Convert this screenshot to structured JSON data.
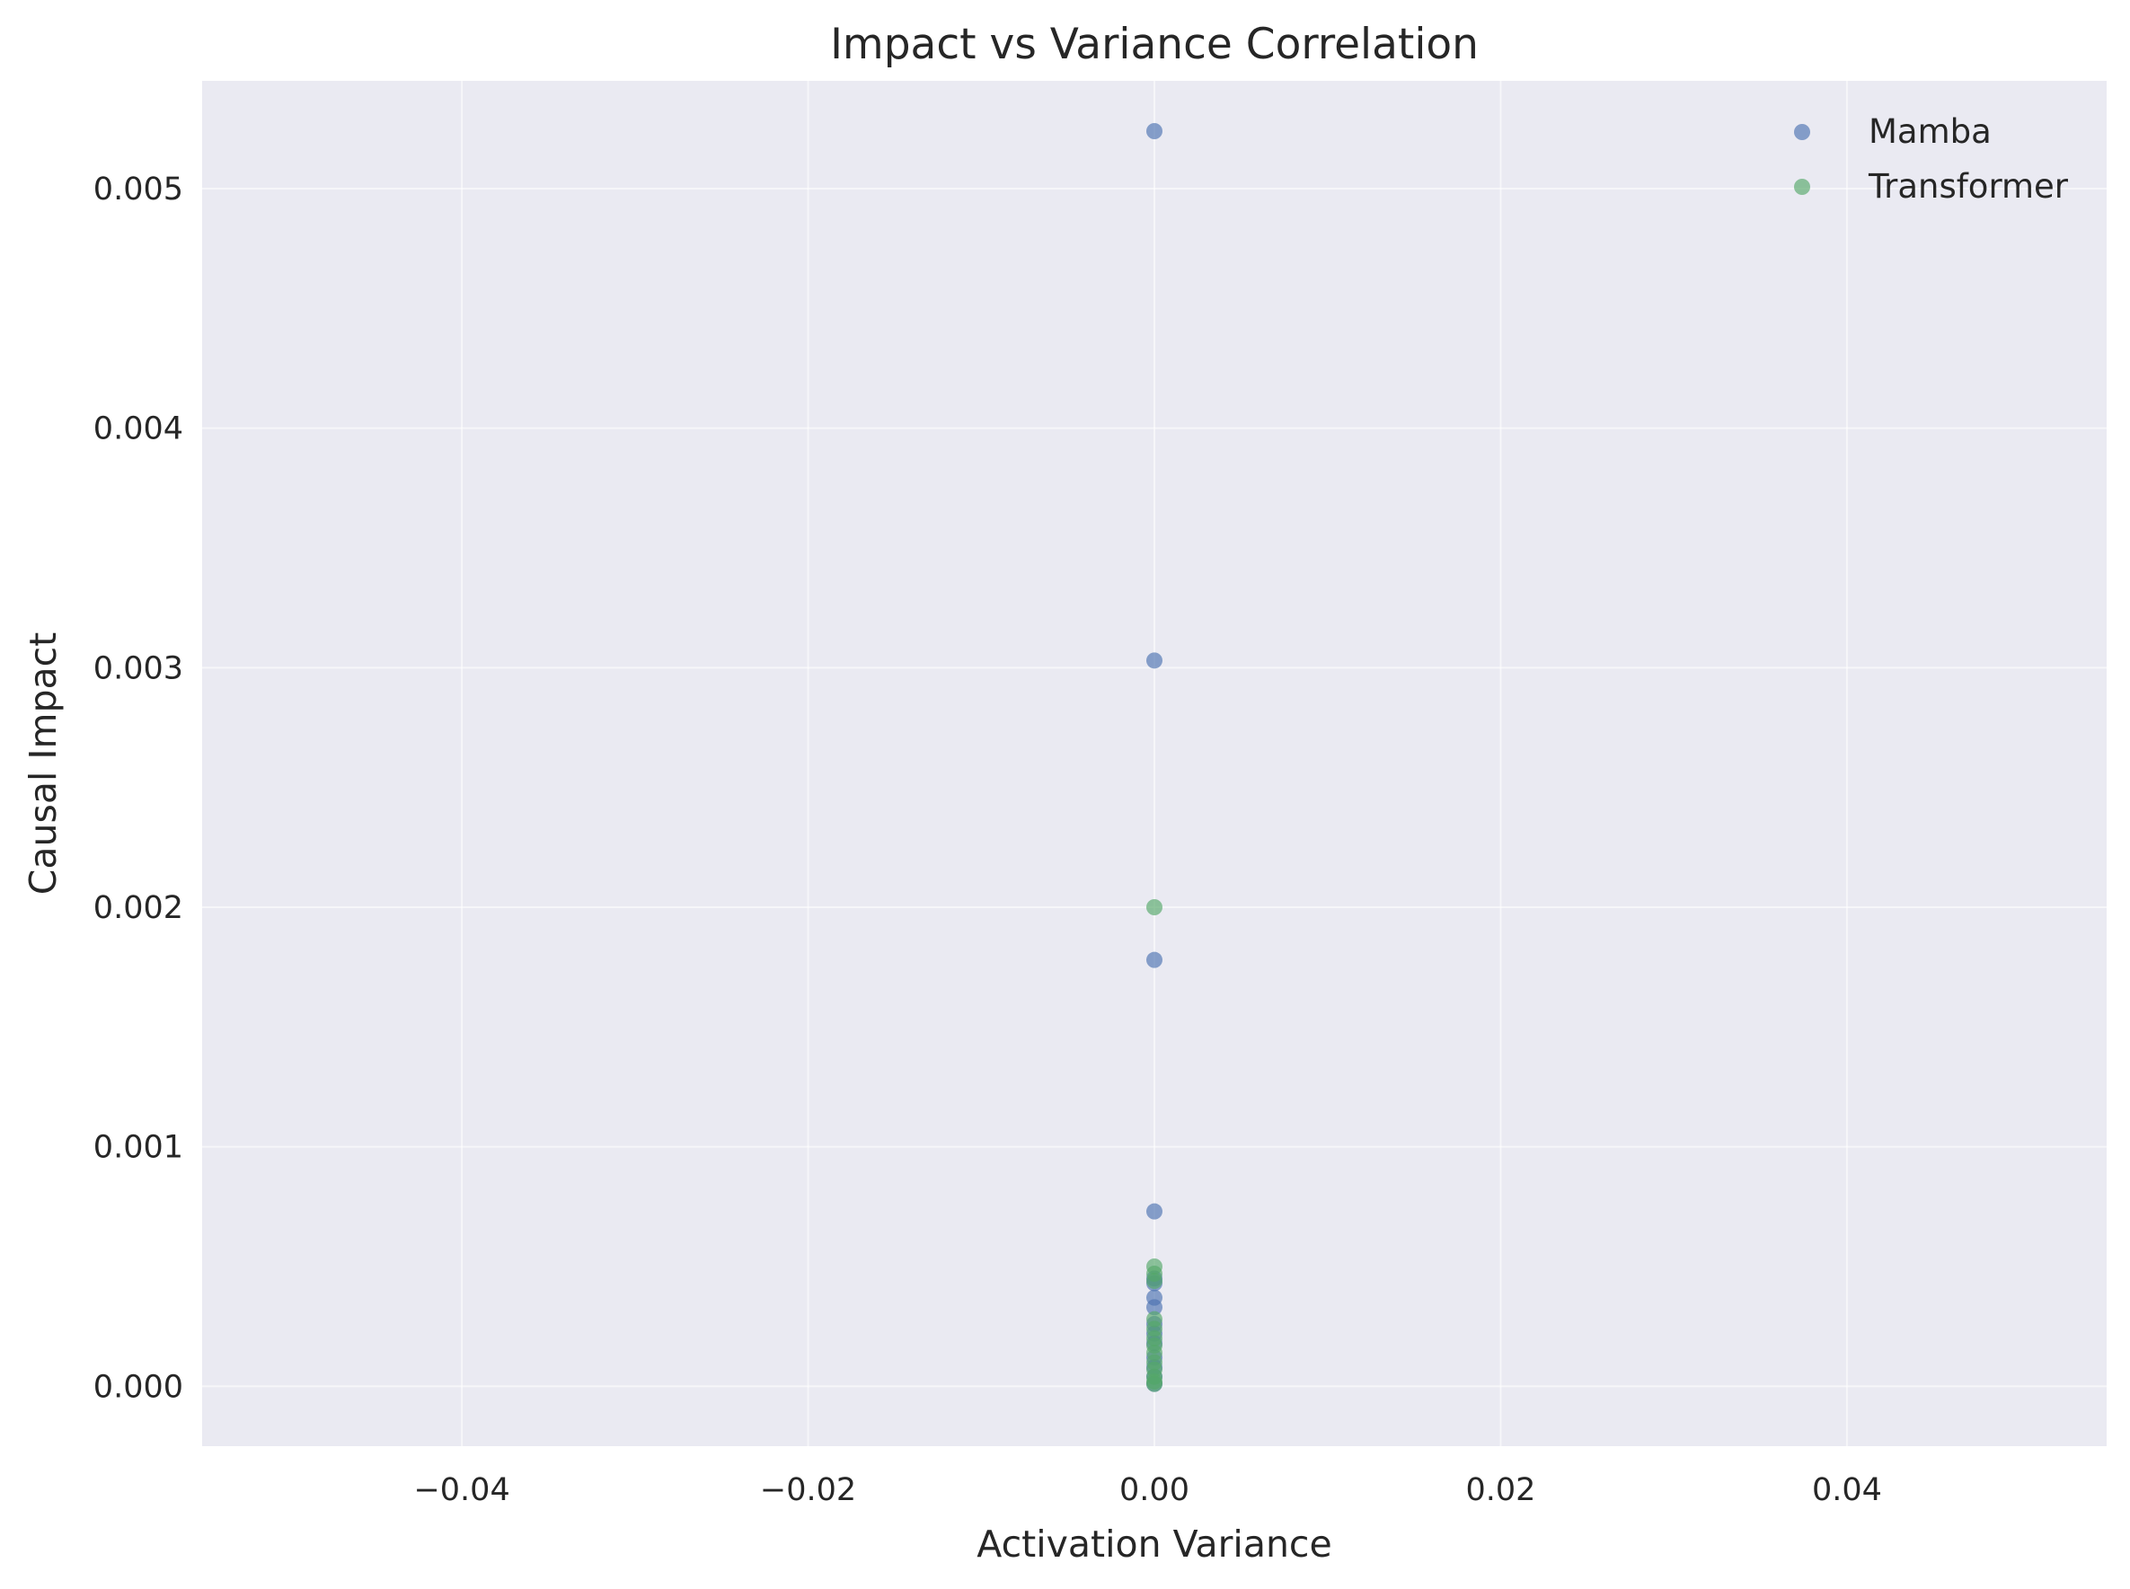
{
  "chart_data": {
    "type": "scatter",
    "title": "Impact vs Variance Correlation",
    "xlabel": "Activation Variance",
    "ylabel": "Causal Impact",
    "xlim": [
      -0.055,
      0.055
    ],
    "ylim": [
      -0.00025,
      0.00545
    ],
    "x_ticks": [
      -0.04,
      -0.02,
      0.0,
      0.02,
      0.04
    ],
    "x_tick_labels": [
      "−0.04",
      "−0.02",
      "0.00",
      "0.02",
      "0.04"
    ],
    "y_ticks": [
      0.0,
      0.001,
      0.002,
      0.003,
      0.004,
      0.005
    ],
    "y_tick_labels": [
      "0.000",
      "0.001",
      "0.002",
      "0.003",
      "0.004",
      "0.005"
    ],
    "grid": true,
    "legend_position": "top-right",
    "series": [
      {
        "name": "Mamba",
        "color": "#4c72b0",
        "alpha": 0.65,
        "points": [
          {
            "x": 0.0,
            "y": 0.00524
          },
          {
            "x": 0.0,
            "y": 0.00303
          },
          {
            "x": 0.0,
            "y": 0.00178
          },
          {
            "x": 0.0,
            "y": 0.00073
          },
          {
            "x": 0.0,
            "y": 0.00045
          },
          {
            "x": 0.0,
            "y": 0.00043
          },
          {
            "x": 0.0,
            "y": 0.00037
          },
          {
            "x": 0.0,
            "y": 0.00033
          },
          {
            "x": 0.0,
            "y": 0.00026
          },
          {
            "x": 0.0,
            "y": 0.00022
          },
          {
            "x": 0.0,
            "y": 0.00018
          },
          {
            "x": 0.0,
            "y": 0.00012
          },
          {
            "x": 0.0,
            "y": 8e-05
          },
          {
            "x": 0.0,
            "y": 4e-05
          },
          {
            "x": 0.0,
            "y": 1e-05
          }
        ]
      },
      {
        "name": "Transformer",
        "color": "#55a868",
        "alpha": 0.65,
        "points": [
          {
            "x": 0.0,
            "y": 0.002
          },
          {
            "x": 0.0,
            "y": 0.0005
          },
          {
            "x": 0.0,
            "y": 0.00047
          },
          {
            "x": 0.0,
            "y": 0.00044
          },
          {
            "x": 0.0,
            "y": 0.00028
          },
          {
            "x": 0.0,
            "y": 0.00024
          },
          {
            "x": 0.0,
            "y": 0.0002
          },
          {
            "x": 0.0,
            "y": 0.00017
          },
          {
            "x": 0.0,
            "y": 0.00014
          },
          {
            "x": 0.0,
            "y": 0.0001
          },
          {
            "x": 0.0,
            "y": 7e-05
          },
          {
            "x": 0.0,
            "y": 4e-05
          },
          {
            "x": 0.0,
            "y": 2e-05
          },
          {
            "x": 0.0,
            "y": 1e-05
          }
        ]
      }
    ]
  }
}
